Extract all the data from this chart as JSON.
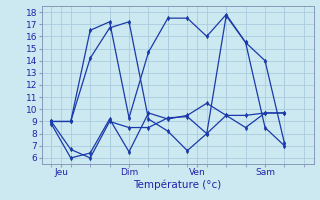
{
  "xlabel": "Température (°c)",
  "background_color": "#cce8f0",
  "grid_color": "#aaccdd",
  "line_color": "#1a3aaa",
  "ylim": [
    5.5,
    18.5
  ],
  "xlim": [
    -0.5,
    13.5
  ],
  "yticks": [
    6,
    7,
    8,
    9,
    10,
    11,
    12,
    13,
    14,
    15,
    16,
    17,
    18
  ],
  "xtick_positions": [
    0.5,
    4.0,
    7.5,
    11.0
  ],
  "xtick_labels": [
    "Jeu",
    "Dim",
    "Ven",
    "Sam"
  ],
  "xgrid_positions": [
    0,
    1,
    2,
    3,
    4,
    5,
    6,
    7,
    8,
    9,
    10,
    11,
    12,
    13
  ],
  "lines": [
    {
      "x": [
        0,
        1,
        2,
        3,
        4,
        5,
        6,
        7,
        8,
        9,
        10,
        11,
        12
      ],
      "y": [
        9.0,
        6.7,
        6.0,
        9.0,
        8.5,
        8.5,
        9.3,
        9.4,
        8.0,
        9.5,
        9.5,
        9.7,
        9.7
      ]
    },
    {
      "x": [
        0,
        1,
        2,
        3,
        4,
        5,
        6,
        7,
        8,
        9,
        10,
        11,
        12
      ],
      "y": [
        8.8,
        6.0,
        6.4,
        9.2,
        6.5,
        9.7,
        9.2,
        9.5,
        10.5,
        9.5,
        8.5,
        9.7,
        9.7
      ]
    },
    {
      "x": [
        0,
        1,
        2,
        3,
        4,
        5,
        6,
        7,
        8,
        9,
        10,
        11,
        12
      ],
      "y": [
        9.0,
        9.0,
        14.2,
        16.7,
        17.2,
        9.2,
        8.2,
        6.6,
        8.0,
        17.7,
        15.5,
        14.0,
        7.2
      ]
    },
    {
      "x": [
        0,
        1,
        2,
        3,
        4,
        5,
        6,
        7,
        8,
        9,
        10,
        11,
        12
      ],
      "y": [
        9.0,
        9.0,
        16.5,
        17.2,
        9.3,
        14.7,
        17.5,
        17.5,
        16.0,
        17.8,
        15.5,
        8.5,
        7.0
      ]
    }
  ]
}
